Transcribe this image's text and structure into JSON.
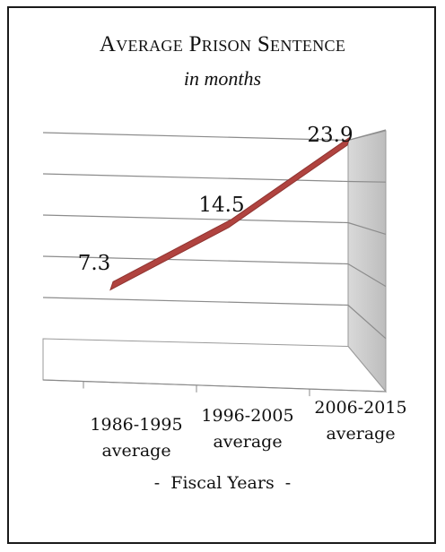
{
  "chart_data": {
    "type": "line",
    "title": "Average Prison Sentence",
    "subtitle": "in months",
    "xlabel": "Fiscal Years",
    "categories": [
      [
        "1986-1995",
        "average"
      ],
      [
        "1996-2005",
        "average"
      ],
      [
        "2006-2015",
        "average"
      ]
    ],
    "series": [
      {
        "values": [
          7.3,
          14.5,
          23.9
        ],
        "color": "#b0433f"
      }
    ],
    "data_labels": [
      "7.3",
      "14.5",
      "23.9"
    ],
    "ylim": [
      0,
      25
    ],
    "grid": true,
    "style": "3d"
  },
  "axis_title_decor": {
    "left": "-",
    "right": "-"
  }
}
